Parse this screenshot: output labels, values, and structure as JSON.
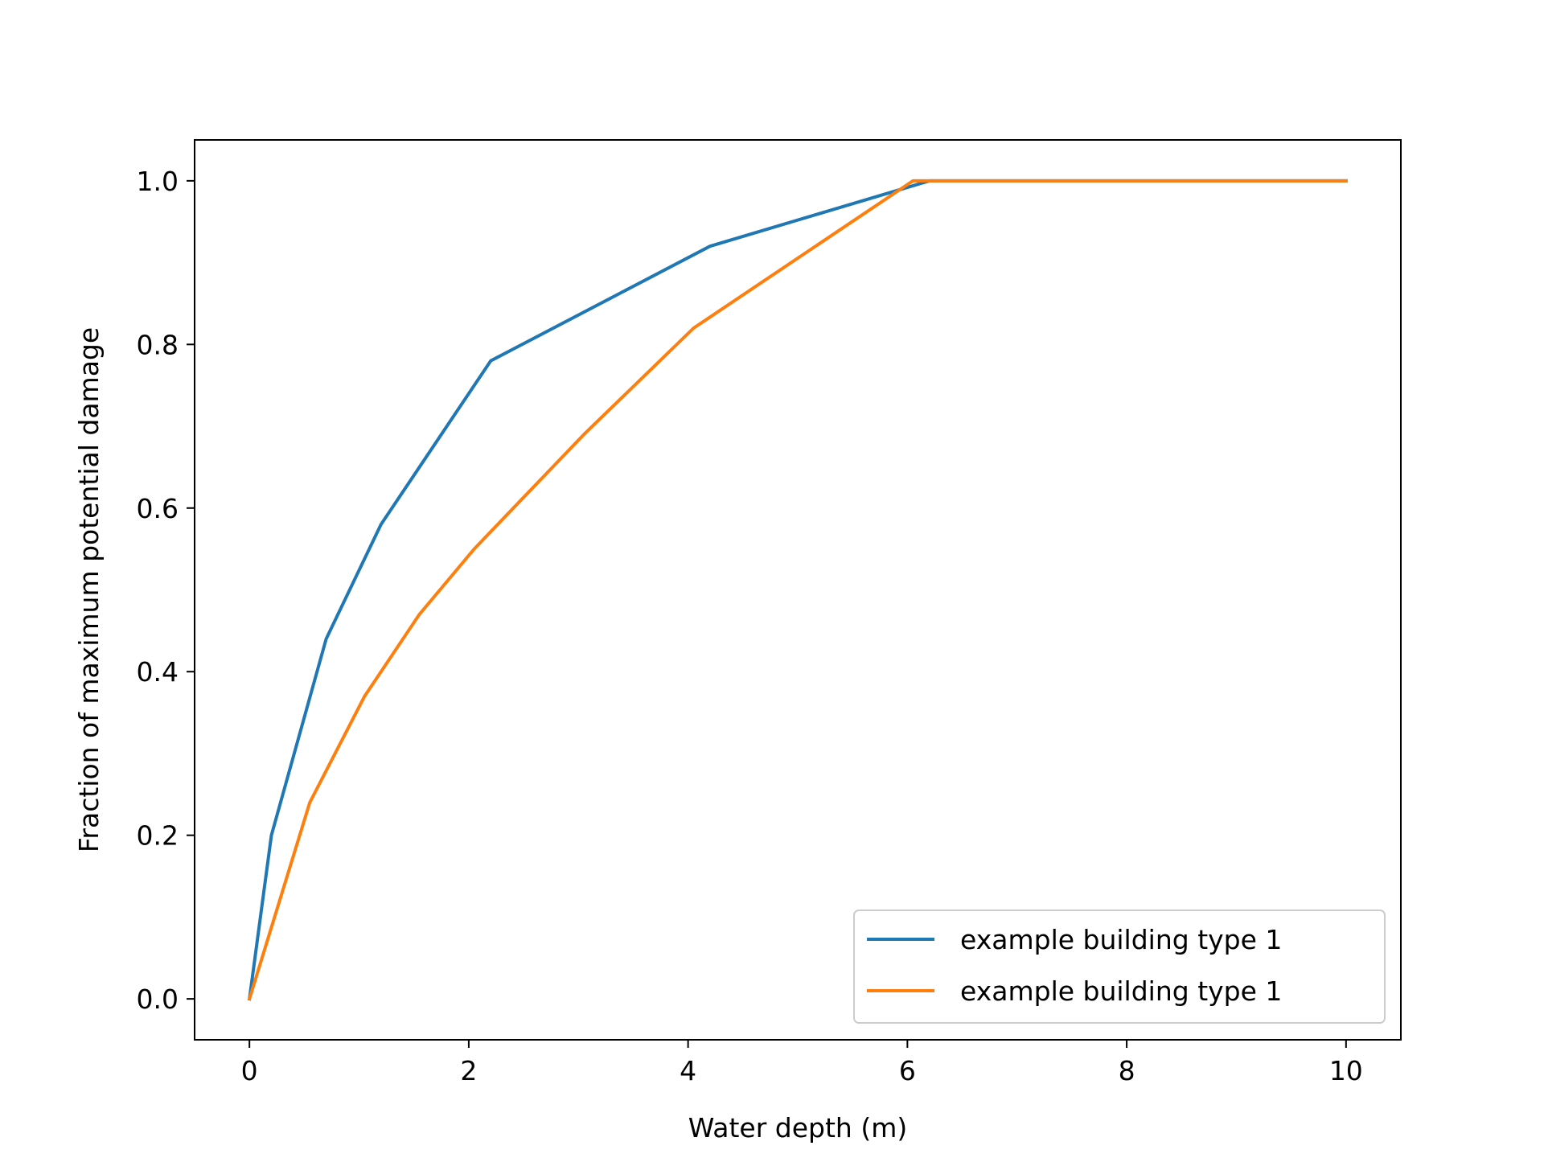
{
  "chart_data": {
    "type": "line",
    "title": "",
    "xlabel": "Water depth (m)",
    "ylabel": "Fraction of maximum potential damage",
    "xlim": [
      -0.5,
      10.5
    ],
    "ylim": [
      -0.05,
      1.05
    ],
    "x_ticks": [
      0,
      2,
      4,
      6,
      8,
      10
    ],
    "y_ticks": [
      0.0,
      0.2,
      0.4,
      0.6,
      0.8,
      1.0
    ],
    "x_tick_labels": [
      "0",
      "2",
      "4",
      "6",
      "8",
      "10"
    ],
    "y_tick_labels": [
      "0.0",
      "0.2",
      "0.4",
      "0.6",
      "0.8",
      "1.0"
    ],
    "grid": false,
    "legend_position": "lower-right",
    "series": [
      {
        "name": "example building type 1",
        "color": "#1f77b4",
        "x": [
          0,
          0.2,
          0.7,
          1.2,
          2.2,
          4.2,
          6.2,
          10
        ],
        "y": [
          0.0,
          0.2,
          0.44,
          0.58,
          0.78,
          0.92,
          1.0,
          1.0
        ]
      },
      {
        "name": "example building type 1",
        "color": "#ff7f0e",
        "x": [
          0,
          0.55,
          1.05,
          1.55,
          2.05,
          3.05,
          4.05,
          6.05,
          10
        ],
        "y": [
          0.0,
          0.24,
          0.37,
          0.47,
          0.55,
          0.69,
          0.82,
          1.0,
          1.0
        ]
      }
    ]
  }
}
